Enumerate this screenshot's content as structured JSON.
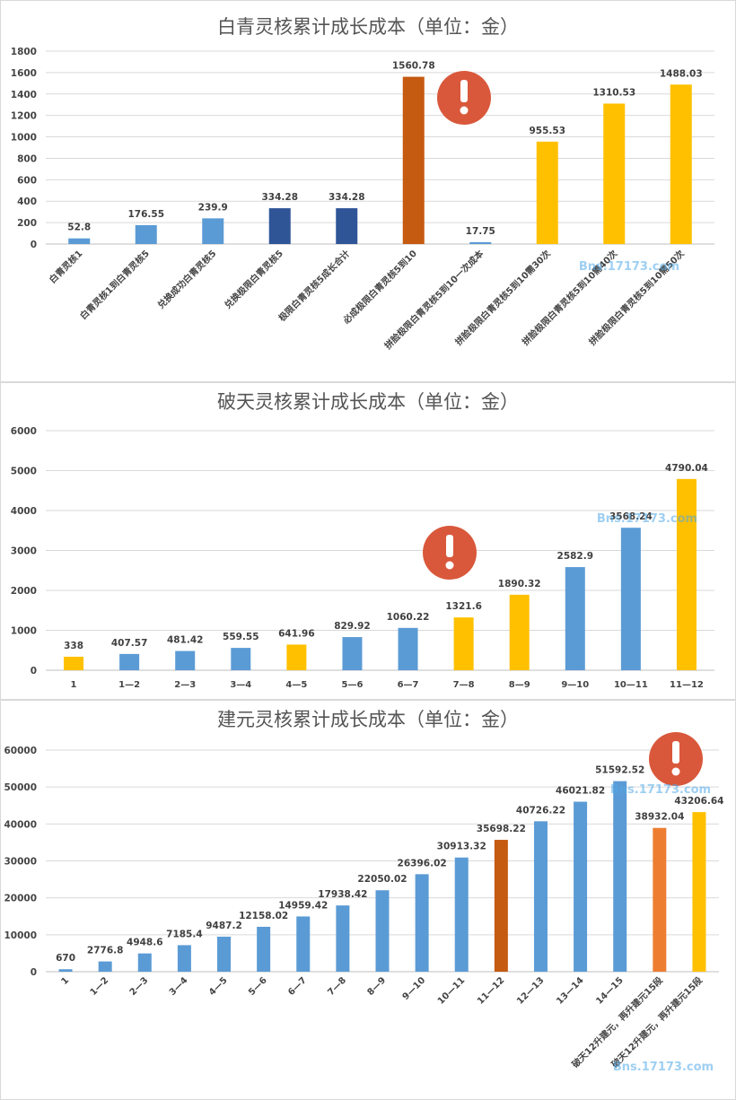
{
  "chart_data": [
    {
      "type": "bar",
      "title": "白青灵核累计成长成本（单位：金）",
      "categories": [
        "白青灵核1",
        "白青灵核1到白青灵核5",
        "兑换成功白青灵核5",
        "兑换极限白青灵核5",
        "极限白青灵核5成长合计",
        "必成极限白青灵核5到10",
        "拼脸极限白青灵核5到10一次成本",
        "拼脸极限白青灵核5到10需30次",
        "拼脸极限白青灵核5到10需40次",
        "拼脸极限白青灵核5到10需50次"
      ],
      "values": [
        52.8,
        176.55,
        239.9,
        334.28,
        334.28,
        1560.78,
        17.75,
        955.53,
        1310.53,
        1488.03
      ],
      "value_labels": [
        "52.8",
        "176.55",
        "239.9",
        "334.28",
        "334.28",
        "1560.78",
        "17.75",
        "955.53",
        "1310.53",
        "1488.03"
      ],
      "colors": [
        "#5b9bd5",
        "#5b9bd5",
        "#5b9bd5",
        "#2f5597",
        "#2f5597",
        "#c55a11",
        "#5b9bd5",
        "#ffc000",
        "#ffc000",
        "#ffc000"
      ],
      "ylim": [
        0,
        1800
      ],
      "yticks": [
        0,
        200,
        400,
        600,
        800,
        1000,
        1200,
        1400,
        1600,
        1800
      ],
      "xlabel": "",
      "ylabel": "",
      "grid": true,
      "legend": "none",
      "alert_icon": "exclamation-icon"
    },
    {
      "type": "bar",
      "title": "破天灵核累计成长成本（单位：金）",
      "categories": [
        "1",
        "1—2",
        "2—3",
        "3—4",
        "4—5",
        "5—6",
        "6—7",
        "7—8",
        "8—9",
        "9—10",
        "10—11",
        "11—12"
      ],
      "values": [
        338,
        407.57,
        481.42,
        559.55,
        641.96,
        829.92,
        1060.22,
        1321.6,
        1890.32,
        2582.9,
        3568.24,
        4790.04
      ],
      "value_labels": [
        "338",
        "407.57",
        "481.42",
        "559.55",
        "641.96",
        "829.92",
        "1060.22",
        "1321.6",
        "1890.32",
        "2582.9",
        "3568.24",
        "4790.04"
      ],
      "colors": [
        "#ffc000",
        "#5b9bd5",
        "#5b9bd5",
        "#5b9bd5",
        "#ffc000",
        "#5b9bd5",
        "#5b9bd5",
        "#ffc000",
        "#ffc000",
        "#5b9bd5",
        "#5b9bd5",
        "#ffc000"
      ],
      "ylim": [
        0,
        6000
      ],
      "yticks": [
        0,
        1000,
        2000,
        3000,
        4000,
        5000,
        6000
      ],
      "xlabel": "",
      "ylabel": "",
      "grid": true,
      "legend": "none",
      "alert_icon": "exclamation-icon"
    },
    {
      "type": "bar",
      "title": "建元灵核累计成长成本（单位：金）",
      "categories": [
        "1",
        "1—2",
        "2—3",
        "3—4",
        "4—5",
        "5—6",
        "6—7",
        "7—8",
        "8—9",
        "9—10",
        "10—11",
        "11—12",
        "12—13",
        "13—14",
        "14—15",
        "破天12升建元，再升建元15段",
        "破天12升建元，再升建元15段"
      ],
      "values": [
        670,
        2776.8,
        4948.6,
        7185.4,
        9487.2,
        12158.02,
        14959.42,
        17938.42,
        22050.02,
        26396.02,
        30913.32,
        35698.22,
        40726.22,
        46021.82,
        51592.52,
        38932.04,
        43206.64
      ],
      "value_labels": [
        "670",
        "2776.8",
        "4948.6",
        "7185.4",
        "9487.2",
        "12158.02",
        "14959.42",
        "17938.42",
        "22050.02",
        "26396.02",
        "30913.32",
        "35698.22",
        "40726.22",
        "46021.82",
        "51592.52",
        "38932.04",
        "43206.64"
      ],
      "colors": [
        "#5b9bd5",
        "#5b9bd5",
        "#5b9bd5",
        "#5b9bd5",
        "#5b9bd5",
        "#5b9bd5",
        "#5b9bd5",
        "#5b9bd5",
        "#5b9bd5",
        "#5b9bd5",
        "#5b9bd5",
        "#c55a11",
        "#5b9bd5",
        "#5b9bd5",
        "#5b9bd5",
        "#ed7d31",
        "#ffc000"
      ],
      "ylim": [
        0,
        60000
      ],
      "yticks": [
        0,
        10000,
        20000,
        30000,
        40000,
        50000,
        60000
      ],
      "xlabel": "",
      "ylabel": "",
      "grid": true,
      "legend": "none",
      "alert_icon": "exclamation-icon"
    }
  ],
  "watermark": "Bns.17173.com"
}
